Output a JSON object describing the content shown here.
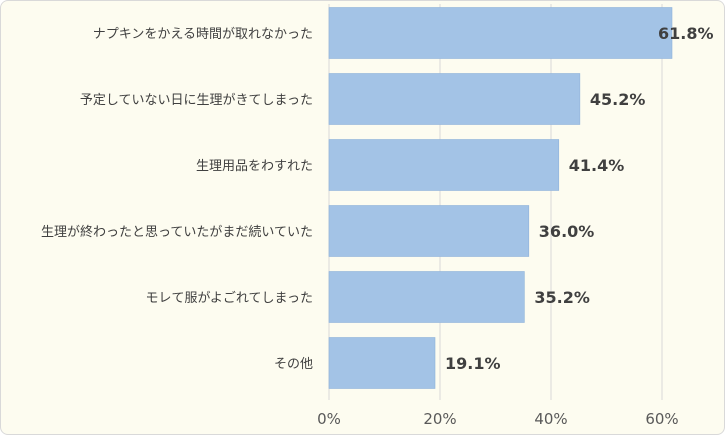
{
  "chart_data": {
    "type": "bar",
    "orientation": "horizontal",
    "categories": [
      "ナプキンをかえる時間が取れなかった",
      "予定していない日に生理がきてしまった",
      "生理用品をわすれた",
      "生理が終わったと思っていたがまだ続いていた",
      "モレて服がよごれてしまった",
      "その他"
    ],
    "values": [
      61.8,
      45.2,
      41.4,
      36.0,
      35.2,
      19.1
    ],
    "data_labels": [
      "61.8%",
      "45.2%",
      "41.4%",
      "36.0%",
      "35.2%",
      "19.1%"
    ],
    "x_ticks": [
      0,
      20,
      40,
      60
    ],
    "x_tick_labels": [
      "0%",
      "20%",
      "40%",
      "60%"
    ],
    "xlim": [
      0,
      70
    ],
    "grid": true,
    "legend": "none",
    "colors": {
      "bar": "#a3c3e6",
      "background": "#fdfcf0",
      "grid": "#d9d9d9",
      "text": "#404040"
    }
  }
}
